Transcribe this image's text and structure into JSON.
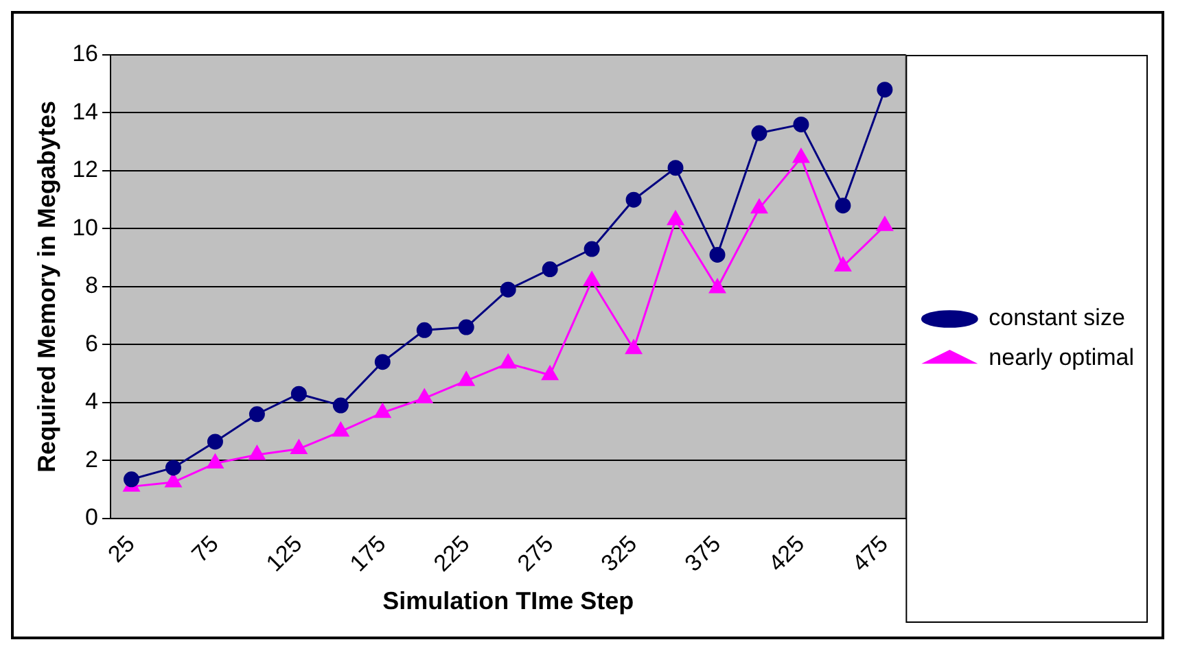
{
  "chart_data": {
    "type": "line",
    "xlabel": "Simulation TIme Step",
    "ylabel": "Required Memory in Megabytes",
    "categories": [
      "25",
      null,
      "75",
      null,
      "125",
      null,
      "175",
      null,
      "225",
      null,
      "275",
      null,
      "325",
      null,
      "375",
      null,
      "425",
      null,
      "475"
    ],
    "series": [
      {
        "name": "constant size",
        "color": "#000080",
        "marker": "circle",
        "values": [
          1.35,
          1.75,
          2.65,
          3.6,
          4.3,
          3.9,
          5.4,
          6.5,
          6.6,
          7.9,
          8.6,
          9.3,
          11.0,
          12.1,
          9.1,
          13.3,
          13.6,
          10.8,
          14.8
        ]
      },
      {
        "name": "nearly optimal",
        "color": "#ff00ff",
        "marker": "triangle",
        "values": [
          1.1,
          1.25,
          1.9,
          2.2,
          2.4,
          3.0,
          3.65,
          4.15,
          4.75,
          5.35,
          4.95,
          8.2,
          5.85,
          10.3,
          7.95,
          10.7,
          12.45,
          8.7,
          10.1
        ]
      }
    ],
    "ylim": [
      0,
      16
    ],
    "yticks": [
      0,
      2,
      4,
      6,
      8,
      10,
      12,
      14,
      16
    ],
    "grid": "y",
    "legend": "right"
  }
}
